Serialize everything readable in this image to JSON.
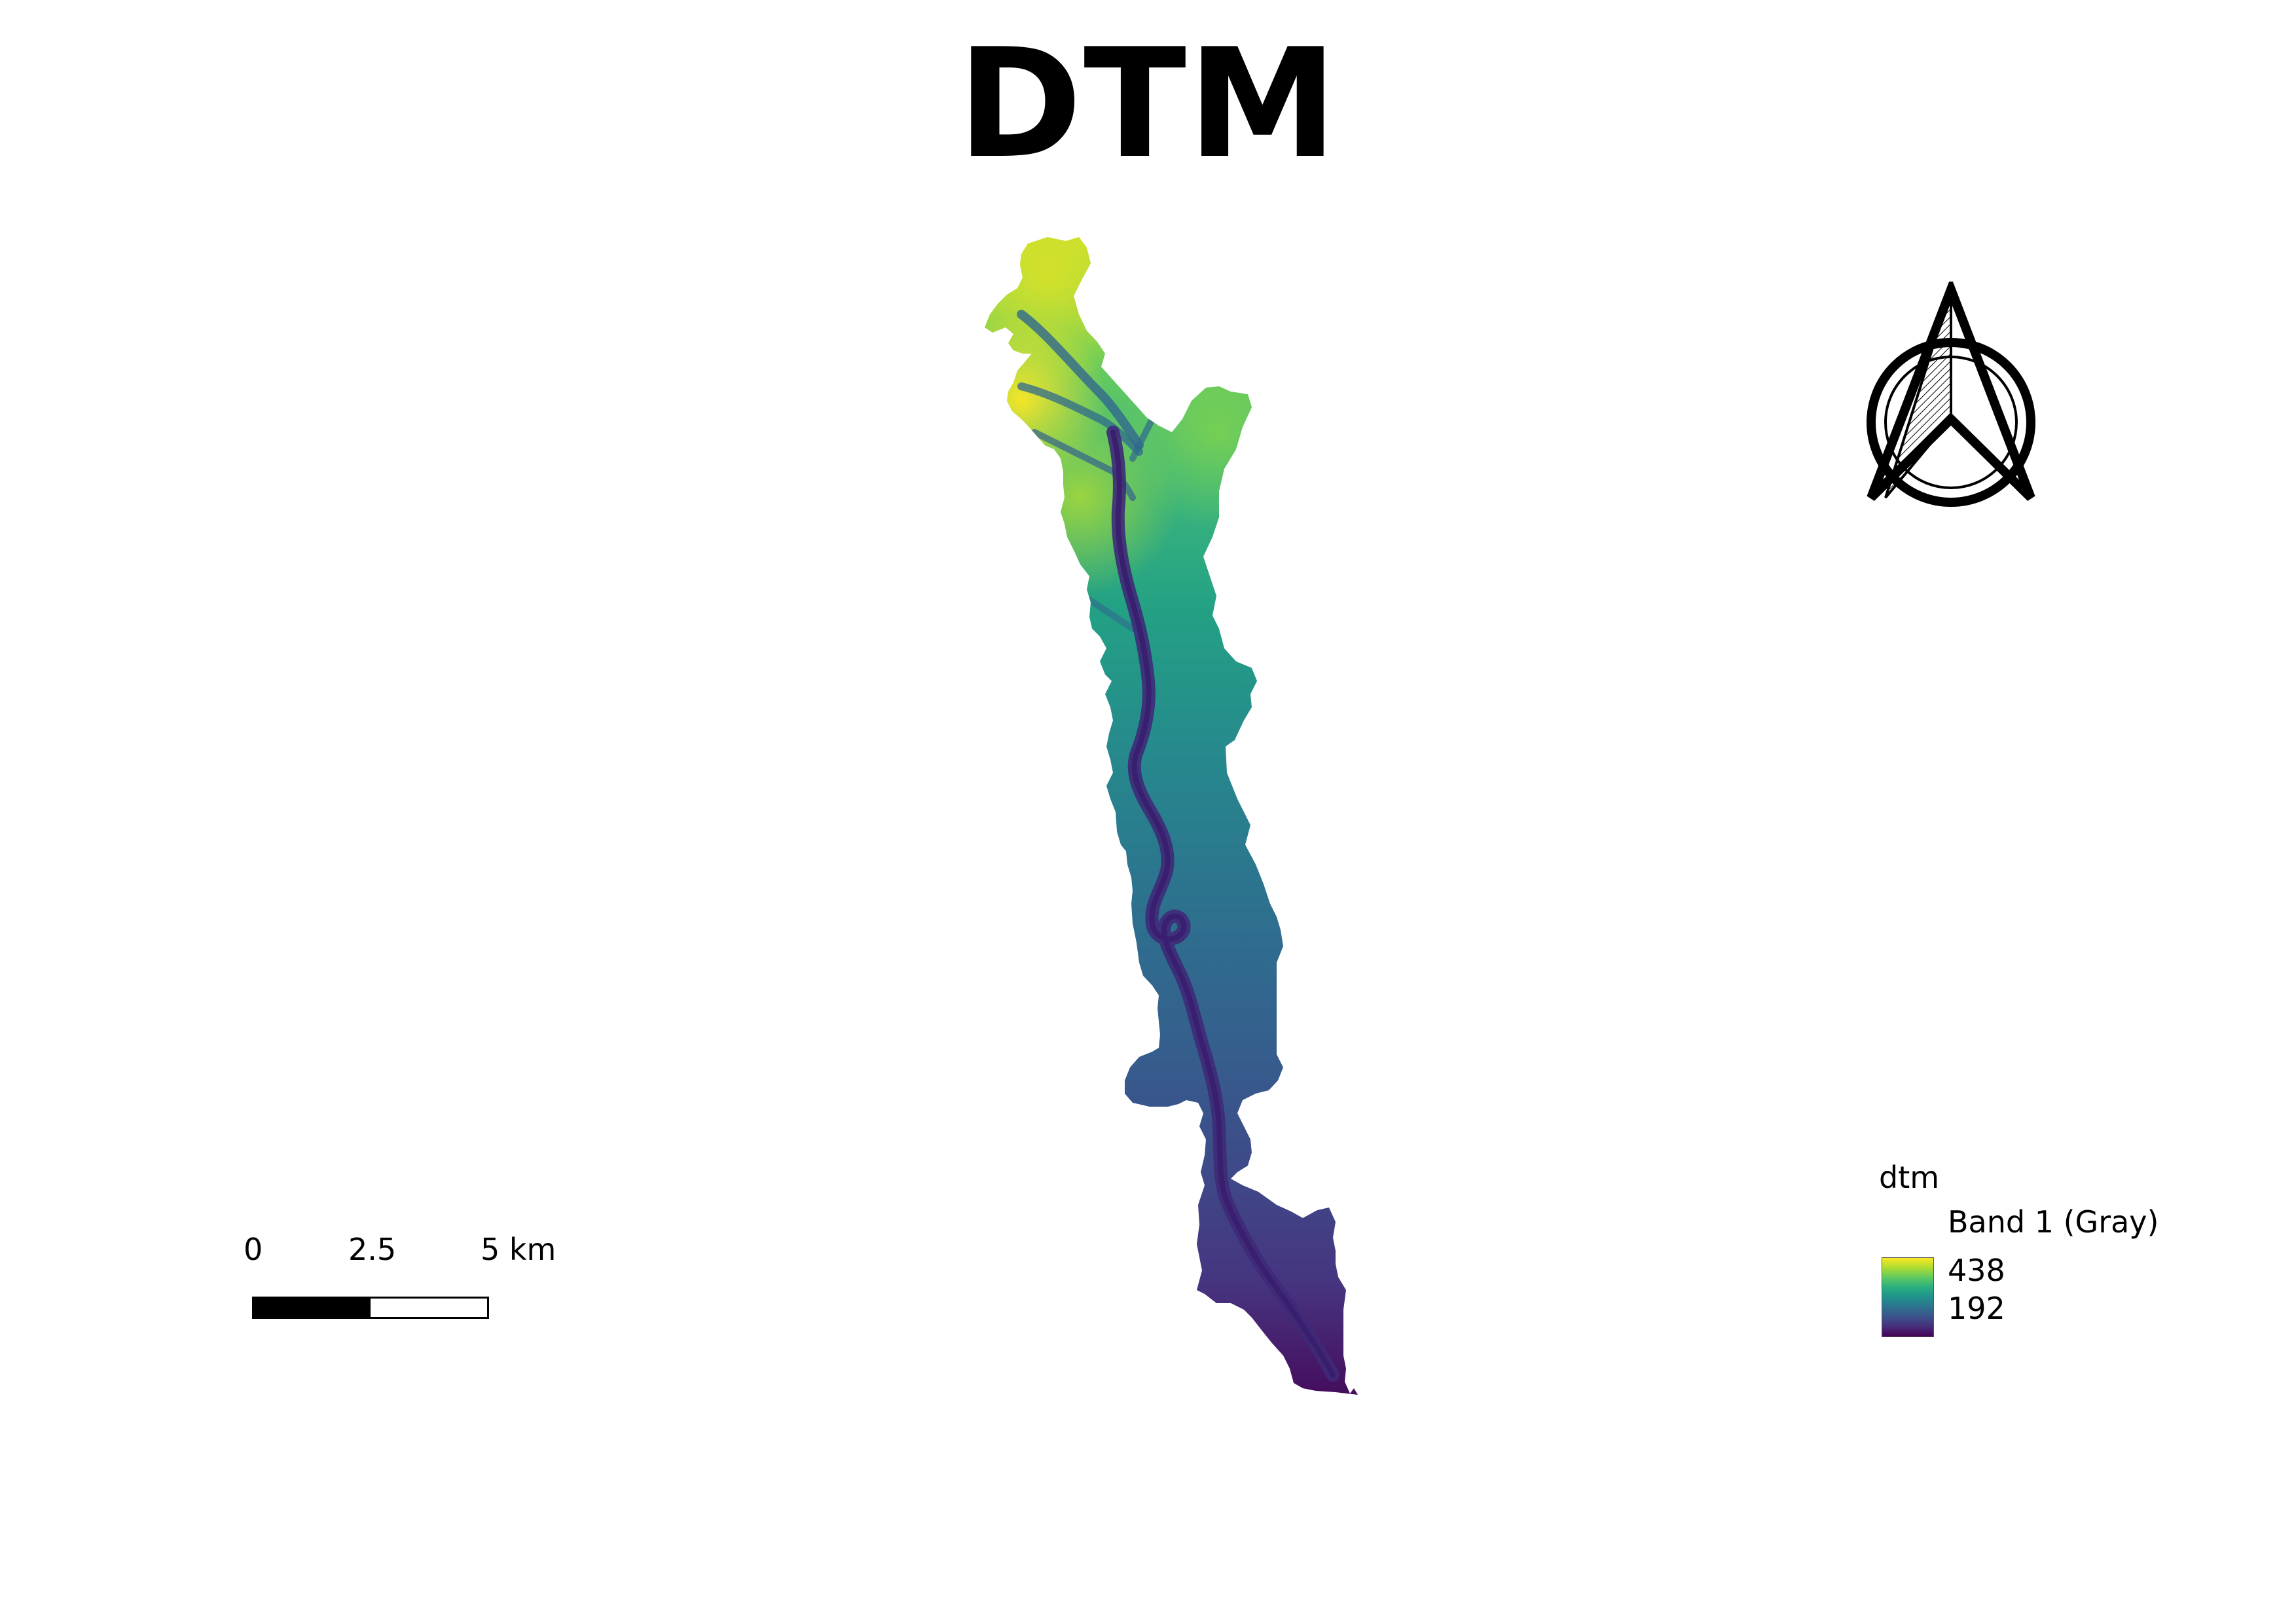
{
  "title": "DTM",
  "colors": {
    "ramp": [
      "#440154",
      "#472d7b",
      "#3b528b",
      "#2c728e",
      "#21918c",
      "#28ae80",
      "#5ec962",
      "#addc30",
      "#fde725"
    ],
    "background": "#ffffff",
    "ink": "#000000"
  },
  "map": {
    "layer": "dtm",
    "feature": "elevation raster of a narrow north–south valley with a dark river channel running through it"
  },
  "north_arrow": {
    "icon": "north-arrow-icon"
  },
  "scale_bar": {
    "labels": [
      "0",
      "2.5",
      "5 km"
    ],
    "filled_fraction": 0.5
  },
  "legend": {
    "layer_name": "dtm",
    "band_label": "Band 1 (Gray)",
    "max_value": "438",
    "min_value": "192"
  }
}
